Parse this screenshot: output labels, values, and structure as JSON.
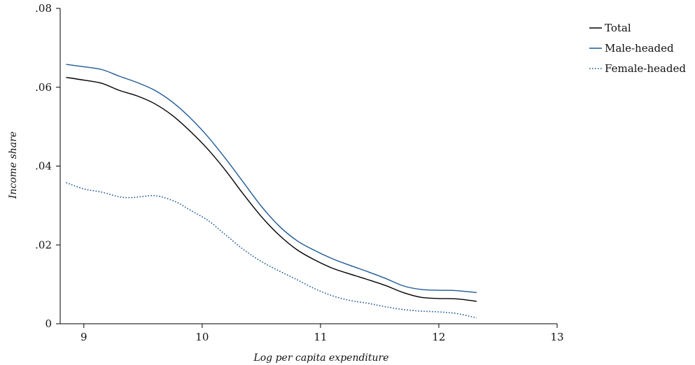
{
  "chart_data": {
    "type": "line",
    "title": "",
    "xlabel": "Log per capita expenditure",
    "ylabel": "Income share",
    "xlim": [
      8.8,
      13
    ],
    "ylim": [
      0,
      0.08
    ],
    "xticks": [
      9,
      10,
      11,
      12,
      13
    ],
    "xtick_labels": [
      "9",
      "10",
      "11",
      "12",
      "13"
    ],
    "yticks": [
      0,
      0.02,
      0.04,
      0.06,
      0.08
    ],
    "ytick_labels": [
      "0",
      ".02",
      ".04",
      ".06",
      ".08"
    ],
    "grid": false,
    "legend_position": "top-right",
    "series": [
      {
        "name": "Total",
        "color": "#000000",
        "dash": "solid",
        "x": [
          8.85,
          9.0,
          9.15,
          9.3,
          9.45,
          9.6,
          9.75,
          9.9,
          10.05,
          10.2,
          10.35,
          10.5,
          10.65,
          10.8,
          10.95,
          11.1,
          11.25,
          11.4,
          11.55,
          11.7,
          11.85,
          12.0,
          12.15,
          12.32
        ],
        "y": [
          0.0625,
          0.0618,
          0.061,
          0.0592,
          0.0578,
          0.0558,
          0.0528,
          0.0488,
          0.0442,
          0.0388,
          0.0328,
          0.0272,
          0.0225,
          0.0188,
          0.0162,
          0.0141,
          0.0126,
          0.0112,
          0.0097,
          0.0079,
          0.0067,
          0.0064,
          0.0063,
          0.0057
        ]
      },
      {
        "name": "Male-headed",
        "color": "#1f5a96",
        "dash": "solid",
        "x": [
          8.85,
          9.0,
          9.15,
          9.3,
          9.45,
          9.6,
          9.75,
          9.9,
          10.05,
          10.2,
          10.35,
          10.5,
          10.65,
          10.8,
          10.95,
          11.1,
          11.25,
          11.4,
          11.55,
          11.7,
          11.85,
          12.0,
          12.15,
          12.32
        ],
        "y": [
          0.0658,
          0.0652,
          0.0645,
          0.0628,
          0.0612,
          0.0592,
          0.0562,
          0.0522,
          0.0474,
          0.0418,
          0.0358,
          0.0298,
          0.0248,
          0.0211,
          0.0186,
          0.0165,
          0.0148,
          0.0132,
          0.0115,
          0.0096,
          0.0087,
          0.0085,
          0.0084,
          0.0079
        ]
      },
      {
        "name": "Female-headed",
        "color": "#1f5a96",
        "dash": "dotted",
        "x": [
          8.85,
          9.0,
          9.15,
          9.3,
          9.4,
          9.5,
          9.6,
          9.7,
          9.8,
          9.9,
          10.05,
          10.2,
          10.35,
          10.5,
          10.65,
          10.8,
          10.95,
          11.1,
          11.25,
          11.4,
          11.55,
          11.7,
          11.85,
          12.0,
          12.15,
          12.32
        ],
        "y": [
          0.0358,
          0.0342,
          0.0334,
          0.0322,
          0.032,
          0.0323,
          0.0325,
          0.0318,
          0.0306,
          0.0288,
          0.0262,
          0.0225,
          0.0188,
          0.0158,
          0.0134,
          0.0112,
          0.0089,
          0.0071,
          0.0059,
          0.0052,
          0.0043,
          0.0036,
          0.0032,
          0.003,
          0.0026,
          0.0015
        ]
      }
    ]
  }
}
